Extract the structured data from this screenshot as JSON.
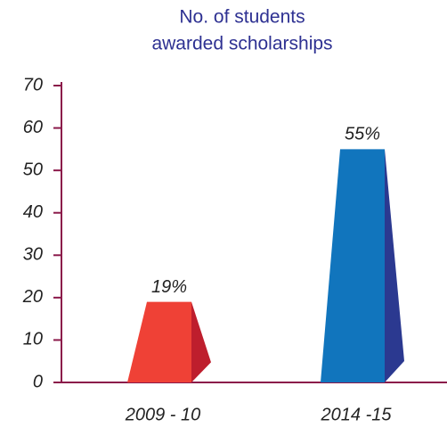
{
  "chart_data": {
    "type": "bar",
    "title": [
      "No. of students",
      "awarded scholarships"
    ],
    "categories": [
      "2009 - 10",
      "2014 -15"
    ],
    "values": [
      19,
      55
    ],
    "value_labels": [
      "19%",
      "55%"
    ],
    "colors": [
      "#ef4136",
      "#1175bd"
    ],
    "side_colors": [
      "#be1e2d",
      "#2b3990"
    ],
    "axis_color": "#8b1a4a",
    "ylim": [
      0,
      70
    ],
    "yticks": [
      0,
      10,
      20,
      30,
      40,
      50,
      60,
      70
    ]
  }
}
